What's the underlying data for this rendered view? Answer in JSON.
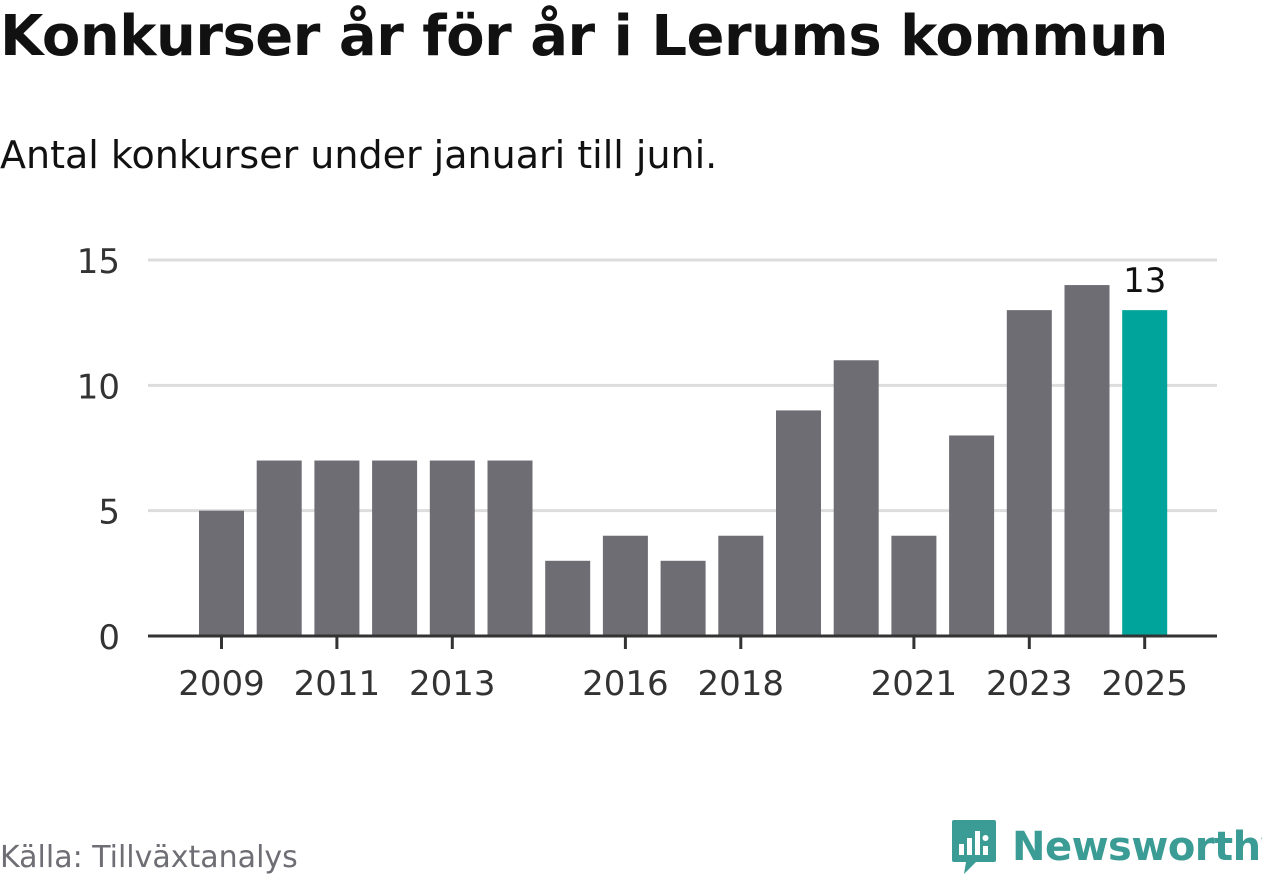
{
  "header": {
    "title": "Konkurser år för år i Lerums kommun",
    "subtitle": "Antal konkurser under januari till juni."
  },
  "chart_data": {
    "type": "bar",
    "title": "Konkurser år för år i Lerums kommun",
    "subtitle": "Antal konkurser under januari till juni.",
    "xlabel": "",
    "ylabel": "",
    "categories": [
      "2009",
      "2010",
      "2011",
      "2012",
      "2013",
      "2014",
      "2015",
      "2016",
      "2017",
      "2018",
      "2019",
      "2020",
      "2021",
      "2022",
      "2023",
      "2024",
      "2025"
    ],
    "x_tick_labels": [
      "2009",
      "2011",
      "2013",
      "2016",
      "2018",
      "2021",
      "2023",
      "2025"
    ],
    "values": [
      5,
      7,
      7,
      7,
      7,
      7,
      3,
      4,
      3,
      4,
      9,
      11,
      4,
      8,
      13,
      14,
      13
    ],
    "ylim": [
      0,
      15
    ],
    "yticks": [
      0,
      5,
      10,
      15
    ],
    "highlight": {
      "category": "2025",
      "label": "13"
    },
    "colors": {
      "bar": "#6e6d73",
      "highlight": "#00a49a",
      "grid": "#dddddd",
      "axis": "#333333",
      "text": "#333333"
    },
    "grid": true,
    "legend": "none"
  },
  "footer": {
    "source": "Källa: Tillväxtanalys",
    "brand": "Newsworthy",
    "brand_icon": "newsworthy-logo-icon",
    "brand_color": "#3a9c94"
  }
}
